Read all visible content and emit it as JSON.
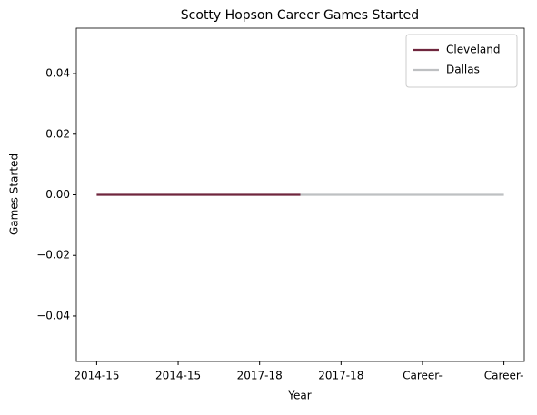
{
  "chart_data": {
    "type": "line",
    "title": "Scotty Hopson Career Games Started",
    "x_label": "Year",
    "y_label": "Games Started",
    "series": [
      {
        "name": "Cleveland",
        "color": "#6f263d",
        "x": [
          0,
          2.5
        ],
        "values": [
          0,
          0
        ]
      },
      {
        "name": "Dallas",
        "color": "#bec0c2",
        "x": [
          2.5,
          5
        ],
        "values": [
          0,
          0
        ]
      }
    ],
    "xlim": [
      -0.25,
      5.25
    ],
    "xticks": [
      {
        "value": 0,
        "label": "2014-15"
      },
      {
        "value": 1,
        "label": "2014-15"
      },
      {
        "value": 2,
        "label": "2017-18"
      },
      {
        "value": 3,
        "label": "2017-18"
      },
      {
        "value": 4,
        "label": "Career-"
      },
      {
        "value": 5,
        "label": "Career-"
      }
    ],
    "ylim": [
      -0.055,
      0.055
    ],
    "yticks": [
      {
        "value": -0.04,
        "label": "−0.04"
      },
      {
        "value": -0.02,
        "label": "−0.02"
      },
      {
        "value": 0,
        "label": "0.00"
      },
      0.02,
      0.04
    ],
    "legend": "upper right",
    "grid": false
  }
}
